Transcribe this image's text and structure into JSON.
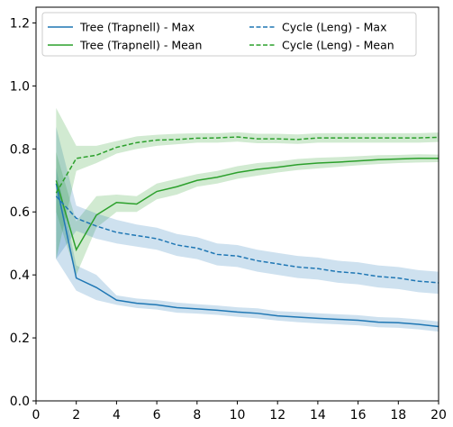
{
  "chart_data": {
    "type": "line",
    "title": "",
    "xlabel": "",
    "ylabel": "",
    "xlim": [
      0,
      20
    ],
    "ylim": [
      0,
      1.25
    ],
    "xticks": [
      0,
      2,
      4,
      6,
      8,
      10,
      12,
      14,
      16,
      18,
      20
    ],
    "yticks": [
      0.0,
      0.2,
      0.4,
      0.6,
      0.8,
      1.0,
      1.2
    ],
    "xtick_labels": [
      "0",
      "2",
      "4",
      "6",
      "8",
      "10",
      "12",
      "14",
      "16",
      "18",
      "20"
    ],
    "ytick_labels": [
      "0.0",
      "0.2",
      "0.4",
      "0.6",
      "0.8",
      "1.0",
      "1.2"
    ],
    "grid": false,
    "legend": {
      "placement": "top",
      "columns": 2
    },
    "x": [
      1,
      2,
      3,
      4,
      5,
      6,
      7,
      8,
      9,
      10,
      11,
      12,
      13,
      14,
      15,
      16,
      17,
      18,
      19,
      20
    ],
    "series": [
      {
        "name": "Tree (Trapnell) - Max",
        "color": "#1f77b4",
        "style": "solid",
        "values": [
          0.69,
          0.39,
          0.36,
          0.32,
          0.31,
          0.305,
          0.296,
          0.292,
          0.288,
          0.282,
          0.278,
          0.27,
          0.266,
          0.262,
          0.259,
          0.256,
          0.25,
          0.248,
          0.243,
          0.236
        ],
        "lower": [
          0.45,
          0.35,
          0.32,
          0.305,
          0.295,
          0.29,
          0.28,
          0.277,
          0.273,
          0.267,
          0.262,
          0.255,
          0.25,
          0.246,
          0.243,
          0.24,
          0.234,
          0.232,
          0.227,
          0.22
        ],
        "upper": [
          0.74,
          0.43,
          0.4,
          0.335,
          0.325,
          0.32,
          0.312,
          0.307,
          0.303,
          0.297,
          0.294,
          0.285,
          0.282,
          0.278,
          0.275,
          0.272,
          0.266,
          0.264,
          0.259,
          0.252
        ]
      },
      {
        "name": "Tree (Trapnell) - Mean",
        "color": "#2ca02c",
        "style": "solid",
        "values": [
          0.7,
          0.48,
          0.59,
          0.63,
          0.625,
          0.665,
          0.68,
          0.7,
          0.71,
          0.725,
          0.735,
          0.742,
          0.75,
          0.755,
          0.758,
          0.762,
          0.766,
          0.768,
          0.77,
          0.77
        ],
        "lower": [
          0.6,
          0.4,
          0.55,
          0.6,
          0.6,
          0.64,
          0.655,
          0.68,
          0.69,
          0.705,
          0.715,
          0.725,
          0.733,
          0.738,
          0.743,
          0.748,
          0.752,
          0.755,
          0.757,
          0.758
        ],
        "upper": [
          0.79,
          0.57,
          0.65,
          0.655,
          0.65,
          0.69,
          0.705,
          0.72,
          0.73,
          0.745,
          0.755,
          0.76,
          0.768,
          0.772,
          0.774,
          0.777,
          0.78,
          0.781,
          0.783,
          0.782
        ]
      },
      {
        "name": "Cycle (Leng) - Max",
        "color": "#1f77b4",
        "style": "dashed",
        "values": [
          0.65,
          0.58,
          0.555,
          0.535,
          0.525,
          0.515,
          0.495,
          0.485,
          0.465,
          0.46,
          0.445,
          0.435,
          0.425,
          0.42,
          0.41,
          0.405,
          0.395,
          0.39,
          0.38,
          0.375
        ],
        "lower": [
          0.45,
          0.54,
          0.515,
          0.5,
          0.49,
          0.48,
          0.46,
          0.45,
          0.43,
          0.425,
          0.41,
          0.4,
          0.39,
          0.385,
          0.375,
          0.37,
          0.36,
          0.355,
          0.345,
          0.34
        ],
        "upper": [
          0.87,
          0.62,
          0.595,
          0.575,
          0.56,
          0.55,
          0.53,
          0.52,
          0.5,
          0.495,
          0.48,
          0.47,
          0.46,
          0.455,
          0.445,
          0.44,
          0.43,
          0.425,
          0.415,
          0.41
        ]
      },
      {
        "name": "Cycle (Leng) - Mean",
        "color": "#2ca02c",
        "style": "dashed",
        "values": [
          0.66,
          0.77,
          0.78,
          0.805,
          0.82,
          0.828,
          0.83,
          0.834,
          0.835,
          0.838,
          0.832,
          0.832,
          0.83,
          0.835,
          0.835,
          0.835,
          0.835,
          0.835,
          0.835,
          0.837
        ],
        "lower": [
          0.45,
          0.73,
          0.755,
          0.785,
          0.8,
          0.81,
          0.815,
          0.82,
          0.82,
          0.823,
          0.818,
          0.818,
          0.816,
          0.82,
          0.82,
          0.82,
          0.82,
          0.82,
          0.82,
          0.822
        ],
        "upper": [
          0.93,
          0.81,
          0.81,
          0.825,
          0.84,
          0.845,
          0.848,
          0.85,
          0.85,
          0.853,
          0.848,
          0.848,
          0.846,
          0.85,
          0.85,
          0.85,
          0.85,
          0.85,
          0.85,
          0.852
        ]
      }
    ]
  }
}
